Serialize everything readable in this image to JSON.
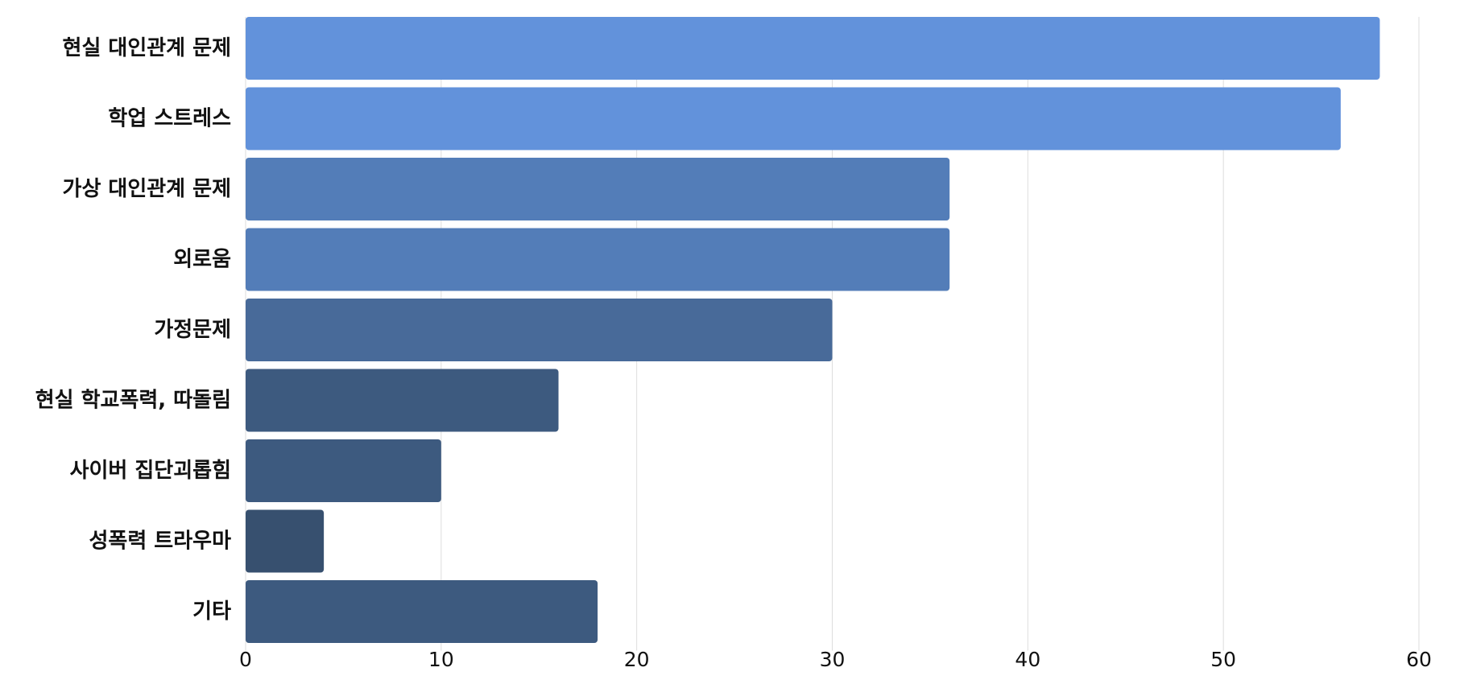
{
  "chart_data": {
    "type": "bar",
    "orientation": "horizontal",
    "categories": [
      "현실 대인관계 문제",
      "학업 스트레스",
      "가상 대인관계 문제",
      "외로움",
      "가정문제",
      "현실 학교폭력, 따돌림",
      "사이버 집단괴롭힘",
      "성폭력 트라우마",
      "기타"
    ],
    "values": [
      58,
      56,
      36,
      36,
      30,
      16,
      10,
      4,
      18
    ],
    "colors": [
      "#6292db",
      "#6292db",
      "#537db8",
      "#537db8",
      "#486a99",
      "#3d5a7f",
      "#3d5a7f",
      "#37506f",
      "#3d5a7f"
    ],
    "xlim": [
      0,
      60
    ],
    "xticks": [
      "0",
      "10",
      "20",
      "30",
      "40",
      "50",
      "60"
    ],
    "grid": true,
    "title": "",
    "xlabel": "",
    "ylabel": ""
  }
}
